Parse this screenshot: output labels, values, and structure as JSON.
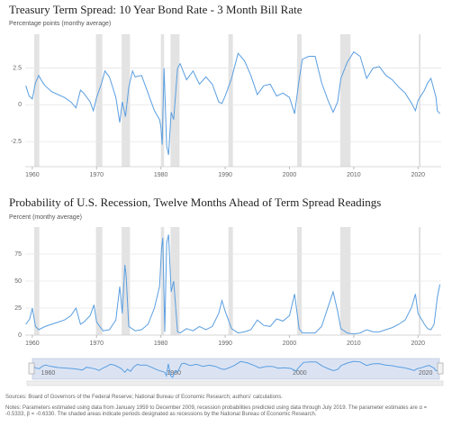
{
  "chart_data": [
    {
      "type": "line",
      "title": "Treasury Term Spread: 10 Year Bond Rate - 3 Month Bill Rate",
      "subtitle": "Percentage points (monthy average)",
      "x": [
        1959,
        1959.5,
        1960,
        1960.5,
        1961,
        1961.5,
        1962,
        1963,
        1964,
        1965,
        1966,
        1966.8,
        1967.5,
        1968,
        1969,
        1969.5,
        1970,
        1970.8,
        1971.3,
        1972,
        1973,
        1973.6,
        1974,
        1974.5,
        1975,
        1975.6,
        1976,
        1977,
        1978,
        1979,
        1979.8,
        1980,
        1980.2,
        1980.5,
        1980.9,
        1981.2,
        1981.6,
        1982,
        1982.6,
        1983,
        1984,
        1985,
        1986,
        1987,
        1988,
        1989,
        1989.5,
        1990,
        1991,
        1992,
        1993,
        1994,
        1995,
        1996,
        1997,
        1998,
        1999,
        2000,
        2000.8,
        2001.5,
        2002,
        2003,
        2004,
        2005,
        2006,
        2006.8,
        2007.5,
        2008,
        2009,
        2010,
        2011,
        2012,
        2013,
        2014,
        2015,
        2016,
        2017,
        2018,
        2019,
        2019.6,
        2020,
        2021,
        2021.5,
        2022,
        2022.5,
        2022.8,
        2023,
        2023.4
      ],
      "series": [
        {
          "name": "Term spread",
          "color": "#5a9ee0",
          "values": [
            1.3,
            0.6,
            0.4,
            1.5,
            2.0,
            1.6,
            1.3,
            0.9,
            0.7,
            0.5,
            0.2,
            -0.2,
            1.0,
            0.8,
            0.2,
            -0.4,
            0.5,
            1.5,
            2.3,
            1.9,
            0.5,
            -1.2,
            0.2,
            -0.8,
            1.2,
            2.3,
            1.9,
            2.0,
            0.8,
            -0.4,
            -1.0,
            -1.5,
            -2.7,
            2.5,
            -2.8,
            -3.4,
            -0.5,
            -1.0,
            2.5,
            2.8,
            1.7,
            2.3,
            1.4,
            1.9,
            1.4,
            0.2,
            0.1,
            0.6,
            1.8,
            3.5,
            3.0,
            2.0,
            0.7,
            1.3,
            1.4,
            0.6,
            0.8,
            0.5,
            -0.6,
            1.7,
            3.1,
            3.3,
            3.3,
            1.5,
            0.3,
            -0.5,
            0.2,
            1.8,
            2.9,
            3.6,
            3.3,
            1.8,
            2.5,
            2.6,
            2.0,
            1.7,
            1.2,
            0.8,
            0.1,
            -0.4,
            0.3,
            1.0,
            1.5,
            1.8,
            1.0,
            0.5,
            -0.4,
            -0.6
          ]
        }
      ],
      "recessions": [
        [
          1960.3,
          1961.1
        ],
        [
          1969.9,
          1970.9
        ],
        [
          1973.9,
          1975.2
        ],
        [
          1980.0,
          1980.5
        ],
        [
          1981.5,
          1982.9
        ],
        [
          1990.5,
          1991.2
        ],
        [
          2001.2,
          2001.9
        ],
        [
          2007.9,
          2009.5
        ],
        [
          2020.1,
          2020.4
        ]
      ],
      "xlim": [
        1958.9,
        2023.6
      ],
      "xticks": [
        1960,
        1970,
        1980,
        1990,
        2000,
        2010,
        2020
      ],
      "ylim": [
        -4.2,
        4.8
      ],
      "yticks": [
        2.5,
        0,
        -2.5
      ],
      "grid": true
    },
    {
      "type": "line",
      "title": "Probability of U.S. Recession, Twelve Months Ahead of Term Spread Readings",
      "subtitle": "Percent (monthy average)",
      "x": [
        1959,
        1959.6,
        1960,
        1960.5,
        1961,
        1962,
        1963,
        1964,
        1965,
        1966,
        1966.8,
        1967.5,
        1968,
        1969,
        1969.6,
        1970,
        1971,
        1972,
        1973,
        1973.6,
        1974,
        1974.4,
        1974.6,
        1975,
        1976,
        1977,
        1978,
        1979,
        1979.8,
        1980.1,
        1980.3,
        1980.6,
        1980.9,
        1981.2,
        1981.6,
        1982,
        1982.6,
        1983,
        1984,
        1985,
        1986,
        1987,
        1988,
        1989,
        1989.5,
        1990,
        1991,
        1992,
        1993,
        1994,
        1995,
        1996,
        1997,
        1998,
        1999,
        2000,
        2000.8,
        2001.5,
        2002,
        2003,
        2004,
        2005,
        2006,
        2006.8,
        2007.5,
        2008,
        2009,
        2010,
        2011,
        2012,
        2013,
        2014,
        2015,
        2016,
        2017,
        2018,
        2019,
        2019.6,
        2020,
        2021,
        2021.5,
        2022,
        2022.5,
        2022.8,
        2023,
        2023.4
      ],
      "series": [
        {
          "name": "Recession probability",
          "color": "#5a9ee0",
          "values": [
            10,
            15,
            25,
            8,
            5,
            8,
            10,
            12,
            14,
            18,
            25,
            10,
            12,
            18,
            28,
            12,
            4,
            5,
            14,
            45,
            20,
            65,
            55,
            8,
            4,
            5,
            10,
            25,
            45,
            80,
            90,
            3,
            85,
            93,
            40,
            50,
            3,
            2,
            6,
            4,
            8,
            5,
            8,
            20,
            32,
            22,
            6,
            2,
            3,
            5,
            14,
            9,
            8,
            15,
            13,
            18,
            38,
            6,
            2,
            2,
            2,
            8,
            26,
            40,
            22,
            6,
            2,
            1,
            2,
            5,
            3,
            3,
            5,
            7,
            10,
            14,
            26,
            38,
            20,
            10,
            6,
            5,
            10,
            25,
            35,
            47
          ]
        }
      ],
      "recessions": [
        [
          1960.3,
          1961.1
        ],
        [
          1969.9,
          1970.9
        ],
        [
          1973.9,
          1975.2
        ],
        [
          1980.0,
          1980.5
        ],
        [
          1981.5,
          1982.9
        ],
        [
          1990.5,
          1991.2
        ],
        [
          2001.2,
          2001.9
        ],
        [
          2007.9,
          2009.5
        ],
        [
          2020.1,
          2020.4
        ]
      ],
      "xlim": [
        1958.9,
        2023.6
      ],
      "xticks": [
        1960,
        1970,
        1980,
        1990,
        2000,
        2010,
        2020
      ],
      "ylim": [
        0,
        100
      ],
      "yticks": [
        0,
        25,
        50,
        75
      ],
      "grid": true
    }
  ],
  "navigator": {
    "xticks": [
      1960,
      1980,
      2000,
      2020
    ]
  },
  "notes": {
    "sources": "Sources: Board of Governors of the Federal Reserve; National Bureau of Economic Research; authors' calculations.",
    "notes": "Notes: Parameters estimated using data from January 1959 to December 2009, recession probabilities predicted using data through July 2019. The parameter estimates are α = -0.5333, β = -0.6330. The shaded areas indicate periods designated as recessions by the National Bureau of Economic Research."
  }
}
